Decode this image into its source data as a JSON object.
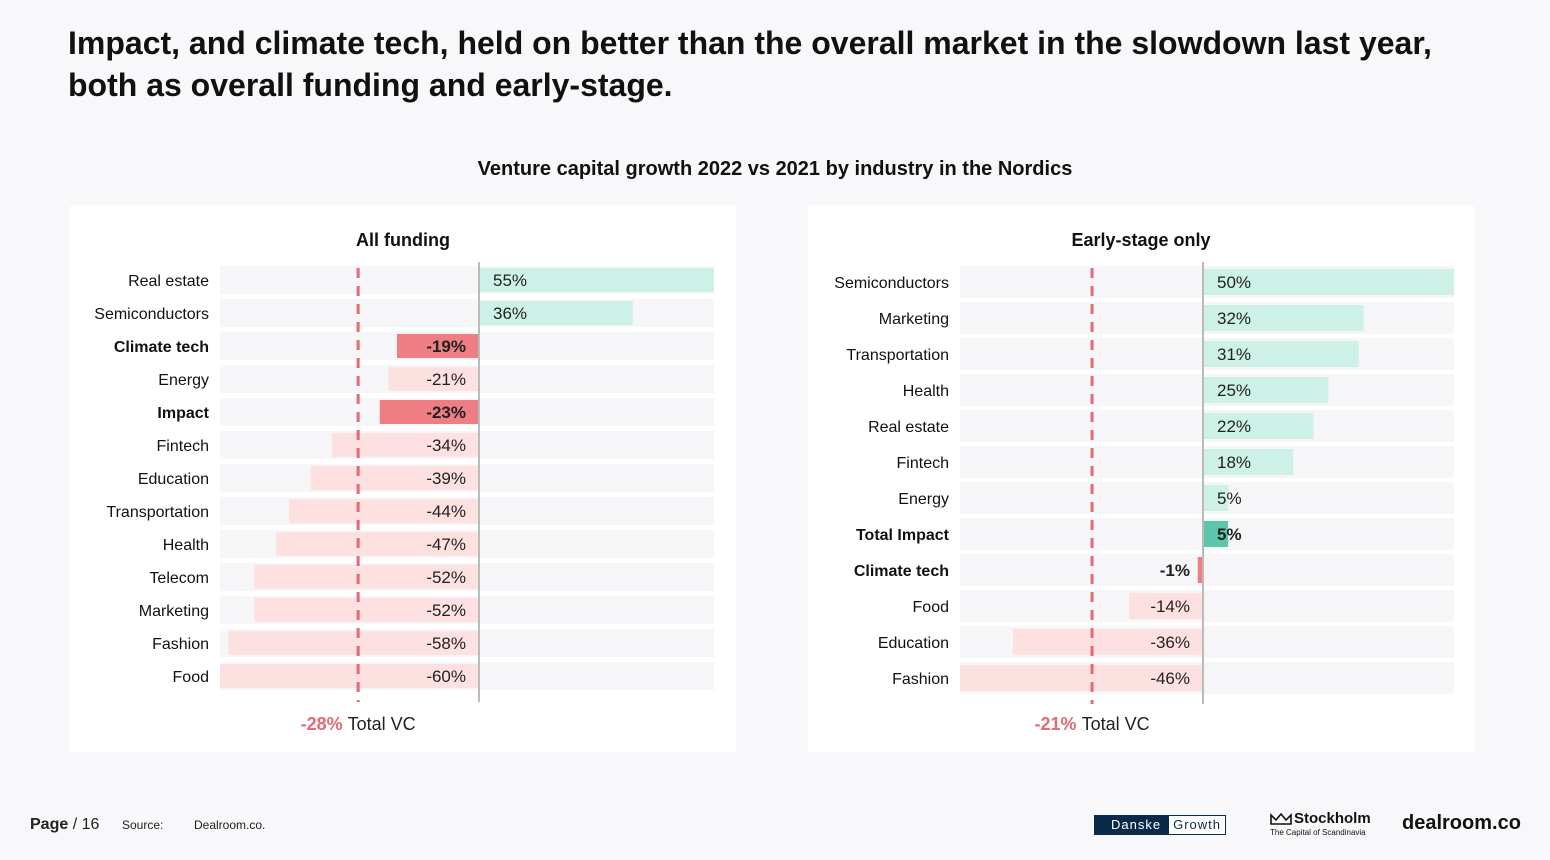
{
  "headline": "Impact, and climate tech, held on better than the overall market in the slowdown last year, both as overall funding and early-stage.",
  "subtitle": "Venture capital growth 2022 vs 2021 by industry in the Nordics",
  "colors": {
    "positive": "#cdf1e6",
    "positive_highlight": "#5cc6ab",
    "negative": "#fde0e0",
    "negative_highlight": "#ee7e84",
    "reference_line": "#e46a73",
    "row_background": "#f6f6f9"
  },
  "chart_data": [
    {
      "type": "bar",
      "orientation": "horizontal",
      "title": "All funding",
      "categories": [
        "Real estate",
        "Semiconductors",
        "Climate tech",
        "Energy",
        "Impact",
        "Fintech",
        "Education",
        "Transportation",
        "Health",
        "Telecom",
        "Marketing",
        "Fashion",
        "Food"
      ],
      "values": [
        55,
        36,
        -19,
        -21,
        -23,
        -34,
        -39,
        -44,
        -47,
        -52,
        -52,
        -58,
        -60
      ],
      "labels": [
        "55%",
        "36%",
        "-19%",
        "-21%",
        "-23%",
        "-34%",
        "-39%",
        "-44%",
        "-47%",
        "-52%",
        "-52%",
        "-58%",
        "-60%"
      ],
      "highlight": [
        "Climate tech",
        "Impact"
      ],
      "xlim": [
        -60,
        55
      ],
      "reference": {
        "value": -28,
        "label_value": "-28%",
        "label_text": "Total VC"
      }
    },
    {
      "type": "bar",
      "orientation": "horizontal",
      "title": "Early-stage only",
      "categories": [
        "Semiconductors",
        "Marketing",
        "Transportation",
        "Health",
        "Real estate",
        "Fintech",
        "Energy",
        "Total Impact",
        "Climate tech",
        "Food",
        "Education",
        "Fashion"
      ],
      "values": [
        50,
        32,
        31,
        25,
        22,
        18,
        5,
        5,
        -1,
        -14,
        -36,
        -46
      ],
      "labels": [
        "50%",
        "32%",
        "31%",
        "25%",
        "22%",
        "18%",
        "5%",
        "5%",
        "-1%",
        "-14%",
        "-36%",
        "-46%"
      ],
      "highlight": [
        "Total Impact",
        "Climate tech"
      ],
      "xlim": [
        -46,
        50
      ],
      "reference": {
        "value": -21,
        "label_value": "-21%",
        "label_text": "Total VC"
      }
    }
  ],
  "footer": {
    "page_label": "Page",
    "page_number": "/ 16",
    "source_label": "Source:",
    "source_value": "Dealroom.co.",
    "logos": {
      "danske_a": "Danske",
      "danske_b": "Growth",
      "stockholm": "Stockholm",
      "stockholm_tagline": "The Capital of Scandinavia",
      "dealroom": "dealroom.co"
    }
  }
}
